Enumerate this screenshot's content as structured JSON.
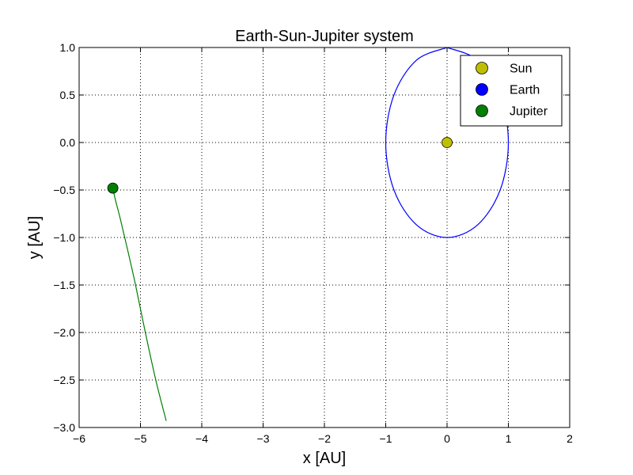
{
  "chart_data": {
    "type": "line",
    "title": "Earth-Sun-Jupiter system",
    "xlabel": "x [AU]",
    "ylabel": "y [AU]",
    "xlim": [
      -6,
      2
    ],
    "ylim": [
      -3,
      1
    ],
    "xticks": [
      -6,
      -5,
      -4,
      -3,
      -2,
      -1,
      0,
      1,
      2
    ],
    "yticks": [
      1.0,
      0.5,
      0.0,
      -0.5,
      -1.0,
      -1.5,
      -2.0,
      -2.5,
      -3.0
    ],
    "xtick_labels": [
      "−6",
      "−5",
      "−4",
      "−3",
      "−2",
      "−1",
      "0",
      "1",
      "2"
    ],
    "ytick_labels": [
      "1.0",
      "0.5",
      "0.0",
      "−0.5",
      "−1.0",
      "−1.5",
      "−2.0",
      "−2.5",
      "−3.0"
    ],
    "grid": true,
    "legend_position": "top-right",
    "series": [
      {
        "name": "Sun",
        "color": "#bfbf00",
        "x": [
          0.0
        ],
        "y": [
          0.0
        ],
        "trail_x": [],
        "trail_y": []
      },
      {
        "name": "Earth",
        "color": "#0000ff",
        "x": [],
        "y": [],
        "trail_x": [
          0.0,
          0.5,
          0.866,
          1.0,
          0.866,
          0.5,
          0.0,
          -0.5,
          -0.866,
          -1.0,
          -0.866,
          -0.5,
          0.0
        ],
        "trail_y": [
          1.0,
          0.866,
          0.5,
          0.0,
          -0.5,
          -0.866,
          -1.0,
          -0.866,
          -0.5,
          0.0,
          0.5,
          0.866,
          1.0
        ]
      },
      {
        "name": "Jupiter",
        "color": "#008000",
        "x": [
          -5.45
        ],
        "y": [
          -0.48
        ],
        "trail_x": [
          -4.58,
          -4.75,
          -4.92,
          -5.08,
          -5.22,
          -5.33,
          -5.41,
          -5.45
        ],
        "trail_y": [
          -2.93,
          -2.5,
          -2.0,
          -1.5,
          -1.1,
          -0.8,
          -0.6,
          -0.48
        ]
      }
    ]
  }
}
